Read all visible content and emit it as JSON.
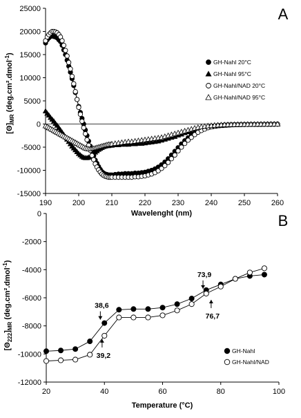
{
  "chart_data": [
    {
      "panel_label": "A",
      "type": "scatter",
      "xlabel": "Wavelenght (nm)",
      "ylabel": "[Θ]",
      "ylabel_sub": "MR",
      "ylabel_unit": " (deg.cm².dmol",
      "ylabel_exp": "-1",
      "ylabel_close": ")",
      "xlim": [
        190,
        260
      ],
      "ylim": [
        -15000,
        25000
      ],
      "xticks": [
        190,
        200,
        210,
        220,
        230,
        240,
        250,
        260
      ],
      "yticks": [
        -15000,
        -10000,
        -5000,
        0,
        5000,
        10000,
        15000,
        20000,
        25000
      ],
      "legend_position": "right",
      "series": [
        {
          "name": "GH-NahI 20°C",
          "marker": "filled-circle",
          "x": [
            190,
            190.5,
            191,
            191.5,
            192,
            192.5,
            193,
            193.5,
            194,
            194.5,
            195,
            195.5,
            196,
            196.5,
            197,
            197.5,
            198,
            198.5,
            199,
            199.5,
            200,
            200.5,
            201,
            201.5,
            202,
            202.5,
            203,
            203.5,
            204,
            204.5,
            205,
            205.5,
            206,
            206.5,
            207,
            207.5,
            208,
            208.5,
            209,
            209.5,
            210,
            211,
            212,
            213,
            214,
            215,
            216,
            217,
            218,
            219,
            220,
            221,
            222,
            223,
            224,
            225,
            226,
            227,
            228,
            229,
            230,
            231,
            232,
            233,
            234,
            235,
            236,
            237,
            238,
            239,
            240,
            241,
            242,
            243,
            244,
            245,
            246,
            247,
            248,
            249,
            250,
            251,
            252,
            253,
            254,
            255,
            256,
            257,
            258,
            259,
            260
          ],
          "y": [
            17500,
            18200,
            18600,
            18900,
            19000,
            18900,
            18800,
            18600,
            18200,
            17800,
            17000,
            16000,
            15000,
            13800,
            12500,
            11200,
            9800,
            8300,
            6800,
            5300,
            3800,
            2500,
            1200,
            0,
            -1300,
            -2500,
            -3700,
            -4800,
            -5900,
            -6900,
            -7800,
            -8500,
            -9200,
            -9800,
            -10300,
            -10600,
            -10800,
            -10900,
            -11000,
            -11000,
            -11000,
            -10900,
            -10800,
            -10800,
            -10700,
            -10700,
            -10700,
            -10600,
            -10600,
            -10500,
            -10400,
            -10200,
            -10000,
            -9700,
            -9300,
            -8800,
            -8200,
            -7500,
            -6700,
            -5900,
            -5100,
            -4300,
            -3600,
            -3000,
            -2400,
            -1900,
            -1500,
            -1200,
            -900,
            -700,
            -500,
            -400,
            -300,
            -250,
            -200,
            -180,
            -160,
            -150,
            -140,
            -130,
            -120,
            -110,
            -100,
            -100,
            -100,
            -90,
            -80,
            -80,
            -70,
            -60,
            -50
          ]
        },
        {
          "name": "GH-NahI 95°C",
          "marker": "filled-triangle",
          "x": [
            190,
            190.5,
            191,
            191.5,
            192,
            192.5,
            193,
            193.5,
            194,
            194.5,
            195,
            195.5,
            196,
            196.5,
            197,
            197.5,
            198,
            198.5,
            199,
            199.5,
            200,
            200.5,
            201,
            201.5,
            202,
            202.5,
            203,
            203.5,
            204,
            204.5,
            205,
            205.5,
            206,
            206.5,
            207,
            207.5,
            208,
            208.5,
            209,
            209.5,
            210,
            211,
            212,
            213,
            214,
            215,
            216,
            217,
            218,
            219,
            220,
            221,
            222,
            223,
            224,
            225,
            226,
            227,
            228,
            229,
            230,
            231,
            232,
            233,
            234,
            235,
            236,
            237,
            238,
            239,
            240,
            241,
            242,
            243,
            244,
            245,
            246,
            247,
            248,
            249,
            250,
            251,
            252,
            253,
            254,
            255,
            256,
            257,
            258,
            259,
            260
          ],
          "y": [
            2800,
            2300,
            1900,
            1400,
            1000,
            600,
            100,
            -300,
            -800,
            -1300,
            -1800,
            -2300,
            -2800,
            -3300,
            -3800,
            -4300,
            -4800,
            -5200,
            -5600,
            -6000,
            -6400,
            -6700,
            -7000,
            -7200,
            -7300,
            -7300,
            -7200,
            -7000,
            -6700,
            -6400,
            -6100,
            -5800,
            -5500,
            -5300,
            -5100,
            -4900,
            -4800,
            -4700,
            -4700,
            -4600,
            -4600,
            -4500,
            -4500,
            -4400,
            -4400,
            -4400,
            -4300,
            -4300,
            -4200,
            -4200,
            -4100,
            -4000,
            -3900,
            -3800,
            -3700,
            -3500,
            -3300,
            -3100,
            -2900,
            -2700,
            -2400,
            -2200,
            -1900,
            -1700,
            -1500,
            -1300,
            -1100,
            -900,
            -800,
            -700,
            -600,
            -500,
            -400,
            -350,
            -300,
            -250,
            -200,
            -180,
            -160,
            -140,
            -120,
            -110,
            -100,
            -90,
            -80,
            -70,
            -60,
            -50,
            -50,
            -40,
            -30
          ]
        },
        {
          "name": "GH-NahI/NAD 20°C",
          "marker": "open-circle",
          "x": [
            190,
            190.5,
            191,
            191.5,
            192,
            192.5,
            193,
            193.5,
            194,
            194.5,
            195,
            195.5,
            196,
            196.5,
            197,
            197.5,
            198,
            198.5,
            199,
            199.5,
            200,
            200.5,
            201,
            201.5,
            202,
            202.5,
            203,
            203.5,
            204,
            204.5,
            205,
            205.5,
            206,
            206.5,
            207,
            207.5,
            208,
            208.5,
            209,
            209.5,
            210,
            211,
            212,
            213,
            214,
            215,
            216,
            217,
            218,
            219,
            220,
            221,
            222,
            223,
            224,
            225,
            226,
            227,
            228,
            229,
            230,
            231,
            232,
            233,
            234,
            235,
            236,
            237,
            238,
            239,
            240,
            241,
            242,
            243,
            244,
            245,
            246,
            247,
            248,
            249,
            250,
            251,
            252,
            253,
            254,
            255,
            256,
            257,
            258,
            259,
            260
          ],
          "y": [
            18000,
            18800,
            19300,
            19700,
            20000,
            20000,
            19900,
            19700,
            19300,
            18800,
            18000,
            17000,
            15900,
            14700,
            13300,
            11900,
            10300,
            8700,
            7000,
            5300,
            3600,
            2100,
            600,
            -800,
            -2100,
            -3400,
            -4600,
            -5700,
            -6800,
            -7700,
            -8600,
            -9300,
            -9900,
            -10400,
            -10800,
            -11100,
            -11300,
            -11400,
            -11500,
            -11500,
            -11500,
            -11500,
            -11500,
            -11500,
            -11500,
            -11500,
            -11500,
            -11400,
            -11400,
            -11300,
            -11200,
            -11000,
            -10800,
            -10500,
            -10100,
            -9600,
            -9000,
            -8300,
            -7500,
            -6700,
            -5800,
            -5000,
            -4200,
            -3500,
            -2900,
            -2300,
            -1800,
            -1400,
            -1100,
            -800,
            -600,
            -450,
            -350,
            -280,
            -220,
            -180,
            -150,
            -130,
            -120,
            -110,
            -100,
            -90,
            -80,
            -80,
            -70,
            -60,
            -60,
            -50,
            -50,
            -40,
            -30
          ]
        },
        {
          "name": "GH-NahI/NAD 95°C",
          "marker": "open-triangle",
          "x": [
            190,
            190.5,
            191,
            191.5,
            192,
            192.5,
            193,
            193.5,
            194,
            194.5,
            195,
            195.5,
            196,
            196.5,
            197,
            197.5,
            198,
            198.5,
            199,
            199.5,
            200,
            200.5,
            201,
            201.5,
            202,
            202.5,
            203,
            203.5,
            204,
            204.5,
            205,
            205.5,
            206,
            206.5,
            207,
            207.5,
            208,
            208.5,
            209,
            209.5,
            210,
            211,
            212,
            213,
            214,
            215,
            216,
            217,
            218,
            219,
            220,
            221,
            222,
            223,
            224,
            225,
            226,
            227,
            228,
            229,
            230,
            231,
            232,
            233,
            234,
            235,
            236,
            237,
            238,
            239,
            240,
            241,
            242,
            243,
            244,
            245,
            246,
            247,
            248,
            249,
            250,
            251,
            252,
            253,
            254,
            255,
            256,
            257,
            258,
            259,
            260
          ],
          "y": [
            -400,
            -600,
            -800,
            -1000,
            -1200,
            -1400,
            -1600,
            -1800,
            -2000,
            -2200,
            -2400,
            -2600,
            -2800,
            -3000,
            -3200,
            -3400,
            -3600,
            -3800,
            -4000,
            -4200,
            -4400,
            -4600,
            -4800,
            -5000,
            -5200,
            -5300,
            -5400,
            -5400,
            -5400,
            -5300,
            -5200,
            -5100,
            -5000,
            -4900,
            -4800,
            -4700,
            -4600,
            -4500,
            -4400,
            -4400,
            -4300,
            -4200,
            -4100,
            -4000,
            -3900,
            -3800,
            -3800,
            -3700,
            -3600,
            -3500,
            -3400,
            -3300,
            -3200,
            -3100,
            -3000,
            -2900,
            -2700,
            -2500,
            -2300,
            -2100,
            -1900,
            -1700,
            -1500,
            -1300,
            -1100,
            -900,
            -750,
            -600,
            -500,
            -400,
            -330,
            -270,
            -220,
            -180,
            -150,
            -130,
            -110,
            -100,
            -90,
            -80,
            -70,
            -60,
            -50,
            -50,
            -40,
            -40,
            -30,
            -30,
            -20,
            -20,
            -10
          ]
        }
      ]
    },
    {
      "panel_label": "B",
      "type": "scatter",
      "xlabel": "Temperature (°C)",
      "ylabel": "[Θ",
      "ylabel_sub": "222",
      "ylabel_close_bracket": "]",
      "ylabel_sub2": "MR",
      "ylabel_unit": " (deg.cm².dmol",
      "ylabel_exp": "-1",
      "ylabel_close": ")",
      "xlim": [
        20,
        100
      ],
      "ylim": [
        -12000,
        0
      ],
      "xticks": [
        20,
        40,
        60,
        80,
        100
      ],
      "yticks": [
        -12000,
        -10000,
        -8000,
        -6000,
        -4000,
        -2000,
        0
      ],
      "legend_position": "bottom-right",
      "series": [
        {
          "name": "GH-NahI",
          "marker": "filled-circle",
          "x": [
            20,
            25,
            30,
            35,
            40,
            45,
            50,
            55,
            60,
            65,
            70,
            75,
            80,
            85,
            90,
            95
          ],
          "y": [
            -9800,
            -9750,
            -9650,
            -9100,
            -7800,
            -6850,
            -6800,
            -6800,
            -6700,
            -6450,
            -6050,
            -5450,
            -5050,
            -4650,
            -4450,
            -4350
          ]
        },
        {
          "name": "GH-NahI/NAD",
          "marker": "open-circle",
          "x": [
            20,
            25,
            30,
            35,
            40,
            45,
            50,
            55,
            60,
            65,
            70,
            75,
            80,
            85,
            90,
            95
          ],
          "y": [
            -10500,
            -10450,
            -10400,
            -10050,
            -8700,
            -7400,
            -7400,
            -7400,
            -7250,
            -6900,
            -6450,
            -5700,
            -5200,
            -4650,
            -4200,
            -3900
          ]
        }
      ],
      "annotations": [
        {
          "text": "38,6",
          "x": 38.6,
          "y": -7800,
          "arrow": "down",
          "series": "GH-NahI"
        },
        {
          "text": "39,2",
          "x": 39.2,
          "y": -8700,
          "arrow": "up",
          "series": "GH-NahI/NAD"
        },
        {
          "text": "73,9",
          "x": 73.9,
          "y": -5600,
          "arrow": "down",
          "series": "GH-NahI"
        },
        {
          "text": "76,7",
          "x": 76.7,
          "y": -5900,
          "arrow": "up",
          "series": "GH-NahI/NAD"
        }
      ]
    }
  ]
}
